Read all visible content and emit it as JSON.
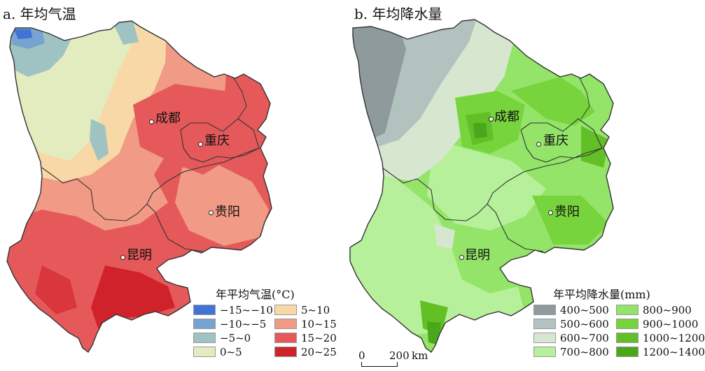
{
  "panels": {
    "a": {
      "title": "a. 年均气温",
      "legend_title": "年平均气温(°C)",
      "legend_items": [
        {
          "label": "−15~−10",
          "color": "#3f74d4"
        },
        {
          "label": "−10~−5",
          "color": "#76a3cf"
        },
        {
          "label": "−5~0",
          "color": "#9fc3c2"
        },
        {
          "label": "0~5",
          "color": "#e3ecbf"
        },
        {
          "label": "5~10",
          "color": "#f7d8a6"
        },
        {
          "label": "10~15",
          "color": "#f19a86"
        },
        {
          "label": "15~20",
          "color": "#e5595a"
        },
        {
          "label": "20~25",
          "color": "#d0222a"
        }
      ]
    },
    "b": {
      "title": "b. 年均降水量",
      "legend_title": "年平均降水量(mm)",
      "legend_items": [
        {
          "label": "400~500",
          "color": "#8e9a9c"
        },
        {
          "label": "500~600",
          "color": "#b2c3bf"
        },
        {
          "label": "600~700",
          "color": "#d6e6cf"
        },
        {
          "label": "700~800",
          "color": "#b7f09a"
        },
        {
          "label": "800~900",
          "color": "#93e468"
        },
        {
          "label": "900~1000",
          "color": "#78d43c"
        },
        {
          "label": "1000~1200",
          "color": "#62bf26"
        },
        {
          "label": "1200~1400",
          "color": "#4ba71a"
        }
      ]
    }
  },
  "cities": [
    {
      "name": "成都"
    },
    {
      "name": "重庆"
    },
    {
      "name": "贵阳"
    },
    {
      "name": "昆明"
    }
  ],
  "scalebar": {
    "zero": "0",
    "distance": "200",
    "unit": "km"
  }
}
